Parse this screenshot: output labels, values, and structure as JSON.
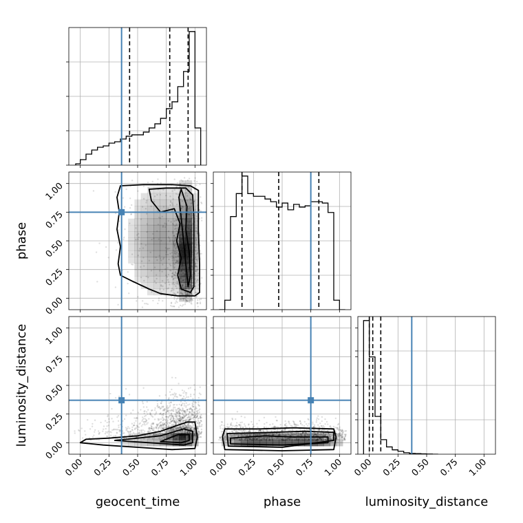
{
  "chart_data": {
    "type": "corner",
    "parameters": [
      "geocent_time",
      "phase",
      "luminosity_distance"
    ],
    "axis_labels": {
      "x": [
        "geocent_time",
        "phase",
        "luminosity_distance"
      ],
      "y": [
        "",
        "phase",
        "luminosity_distance"
      ]
    },
    "range": [
      -0.1,
      1.1
    ],
    "tick_values": [
      0.0,
      0.25,
      0.5,
      0.75,
      1.0
    ],
    "tick_labels": [
      "0.00",
      "0.25",
      "0.50",
      "0.75",
      "1.00"
    ],
    "truths": [
      0.36,
      0.75,
      0.37
    ],
    "truth_color": "#4682b4",
    "grid": true,
    "histograms": [
      {
        "parameter": "geocent_time",
        "bin_edges": [
          -0.04,
          0.0,
          0.05,
          0.1,
          0.15,
          0.2,
          0.25,
          0.3,
          0.35,
          0.4,
          0.45,
          0.5,
          0.55,
          0.6,
          0.65,
          0.7,
          0.75,
          0.8,
          0.85,
          0.9,
          0.95,
          1.0,
          1.05
        ],
        "counts": [
          0.01,
          0.04,
          0.08,
          0.11,
          0.13,
          0.14,
          0.16,
          0.17,
          0.19,
          0.21,
          0.22,
          0.22,
          0.24,
          0.27,
          0.3,
          0.34,
          0.41,
          0.46,
          0.57,
          0.68,
          0.97,
          0.27
        ],
        "quantiles": [
          0.43,
          0.78,
          0.94
        ]
      },
      {
        "parameter": "phase",
        "bin_edges": [
          -0.05,
          0.0,
          0.05,
          0.1,
          0.15,
          0.2,
          0.25,
          0.3,
          0.35,
          0.4,
          0.45,
          0.5,
          0.55,
          0.6,
          0.65,
          0.7,
          0.75,
          0.8,
          0.85,
          0.9,
          0.95,
          1.0,
          1.05
        ],
        "counts": [
          0.0,
          0.07,
          0.69,
          0.86,
          0.99,
          0.86,
          0.84,
          0.84,
          0.82,
          0.8,
          0.76,
          0.79,
          0.74,
          0.78,
          0.76,
          0.77,
          0.8,
          0.8,
          0.79,
          0.72,
          0.07,
          0.0
        ],
        "quantiles": [
          0.15,
          0.47,
          0.82
        ]
      },
      {
        "parameter": "luminosity_distance",
        "bin_edges": [
          -0.05,
          0.0,
          0.05,
          0.1,
          0.15,
          0.2,
          0.25,
          0.3,
          0.35,
          0.4,
          0.45,
          0.5,
          0.55,
          0.6
        ],
        "counts": [
          0.92,
          0.67,
          0.26,
          0.1,
          0.05,
          0.03,
          0.02,
          0.01,
          0.005,
          0.004,
          0.002,
          0.001,
          0.0
        ],
        "quantiles": [
          0.0,
          0.03,
          0.1
        ]
      }
    ],
    "pair_plots": [
      {
        "x": "geocent_time",
        "y": "phase",
        "density_blobs": [
          {
            "cx": 0.93,
            "cy": 0.5,
            "sx": 0.05,
            "sy": 0.28,
            "w": 1.0
          },
          {
            "cx": 0.92,
            "cy": 0.15,
            "sx": 0.04,
            "sy": 0.08,
            "w": 0.5
          },
          {
            "cx": 0.9,
            "cy": 0.38,
            "sx": 0.04,
            "sy": 0.08,
            "w": 0.4
          },
          {
            "cx": 0.74,
            "cy": 0.5,
            "sx": 0.12,
            "sy": 0.3,
            "w": 0.45
          },
          {
            "cx": 0.55,
            "cy": 0.5,
            "sx": 0.12,
            "sy": 0.3,
            "w": 0.25
          }
        ],
        "contours": [
          [
            [
              0.35,
              0.98
            ],
            [
              0.55,
              0.99
            ],
            [
              0.8,
              0.99
            ],
            [
              0.96,
              0.98
            ],
            [
              1.03,
              0.94
            ],
            [
              1.03,
              0.6
            ],
            [
              1.04,
              0.3
            ],
            [
              1.04,
              0.05
            ],
            [
              1.0,
              0.02
            ],
            [
              0.85,
              0.02
            ],
            [
              0.7,
              0.04
            ],
            [
              0.6,
              0.08
            ],
            [
              0.45,
              0.15
            ],
            [
              0.35,
              0.2
            ],
            [
              0.33,
              0.3
            ],
            [
              0.35,
              0.45
            ],
            [
              0.32,
              0.6
            ],
            [
              0.34,
              0.75
            ],
            [
              0.32,
              0.88
            ]
          ],
          [
            [
              0.6,
              0.95
            ],
            [
              0.75,
              0.96
            ],
            [
              0.92,
              0.96
            ],
            [
              0.98,
              0.9
            ],
            [
              0.99,
              0.7
            ],
            [
              0.99,
              0.4
            ],
            [
              0.99,
              0.1
            ],
            [
              0.96,
              0.05
            ],
            [
              0.88,
              0.08
            ],
            [
              0.85,
              0.2
            ],
            [
              0.88,
              0.35
            ],
            [
              0.84,
              0.5
            ],
            [
              0.87,
              0.65
            ],
            [
              0.82,
              0.78
            ],
            [
              0.7,
              0.75
            ],
            [
              0.62,
              0.85
            ]
          ],
          [
            [
              0.88,
              0.95
            ],
            [
              0.93,
              0.8
            ],
            [
              0.92,
              0.6
            ],
            [
              0.95,
              0.4
            ],
            [
              0.96,
              0.2
            ],
            [
              0.94,
              0.1
            ],
            [
              0.92,
              0.3
            ],
            [
              0.9,
              0.5
            ],
            [
              0.88,
              0.7
            ],
            [
              0.86,
              0.88
            ]
          ]
        ]
      },
      {
        "x": "geocent_time",
        "y": "luminosity_distance",
        "density_blobs": [
          {
            "cx": 0.9,
            "cy": 0.04,
            "sx": 0.08,
            "sy": 0.05,
            "w": 1.0
          },
          {
            "cx": 0.72,
            "cy": 0.03,
            "sx": 0.15,
            "sy": 0.04,
            "w": 0.45
          },
          {
            "cx": 0.45,
            "cy": 0.02,
            "sx": 0.2,
            "sy": 0.03,
            "w": 0.18
          }
        ],
        "contours": [
          [
            [
              0.0,
              0.0
            ],
            [
              0.2,
              -0.02
            ],
            [
              0.5,
              -0.04
            ],
            [
              0.8,
              -0.06
            ],
            [
              1.0,
              -0.05
            ],
            [
              1.02,
              0.05
            ],
            [
              1.0,
              0.18
            ],
            [
              0.93,
              0.18
            ],
            [
              0.7,
              0.1
            ],
            [
              0.5,
              0.06
            ],
            [
              0.25,
              0.04
            ],
            [
              0.05,
              0.03
            ]
          ],
          [
            [
              0.3,
              0.02
            ],
            [
              0.6,
              0.0
            ],
            [
              0.9,
              -0.02
            ],
            [
              0.98,
              0.0
            ],
            [
              0.98,
              0.1
            ],
            [
              0.9,
              0.12
            ],
            [
              0.7,
              0.06
            ],
            [
              0.5,
              0.04
            ]
          ],
          [
            [
              0.7,
              0.01
            ],
            [
              0.88,
              0.0
            ],
            [
              0.95,
              0.02
            ],
            [
              0.95,
              0.07
            ],
            [
              0.85,
              0.07
            ]
          ]
        ]
      },
      {
        "x": "phase",
        "y": "luminosity_distance",
        "density_blobs": [
          {
            "cx": 0.5,
            "cy": 0.02,
            "sx": 0.32,
            "sy": 0.035,
            "w": 1.0
          },
          {
            "cx": 0.2,
            "cy": 0.02,
            "sx": 0.1,
            "sy": 0.03,
            "w": 0.4
          },
          {
            "cx": 0.8,
            "cy": 0.02,
            "sx": 0.1,
            "sy": 0.03,
            "w": 0.4
          }
        ],
        "contours": [
          [
            [
              0.0,
              0.12
            ],
            [
              0.3,
              0.12
            ],
            [
              0.6,
              0.13
            ],
            [
              0.95,
              0.12
            ],
            [
              0.97,
              0.05
            ],
            [
              0.95,
              -0.06
            ],
            [
              0.5,
              -0.07
            ],
            [
              0.0,
              -0.06
            ],
            [
              -0.02,
              0.05
            ]
          ],
          [
            [
              0.02,
              0.08
            ],
            [
              0.4,
              0.09
            ],
            [
              0.7,
              0.1
            ],
            [
              0.95,
              0.09
            ],
            [
              0.95,
              0.02
            ],
            [
              0.5,
              -0.04
            ],
            [
              0.03,
              -0.03
            ]
          ],
          [
            [
              0.05,
              0.04
            ],
            [
              0.35,
              0.06
            ],
            [
              0.6,
              0.05
            ],
            [
              0.9,
              0.05
            ],
            [
              0.9,
              0.0
            ],
            [
              0.5,
              -0.02
            ],
            [
              0.05,
              -0.01
            ]
          ]
        ]
      }
    ]
  }
}
